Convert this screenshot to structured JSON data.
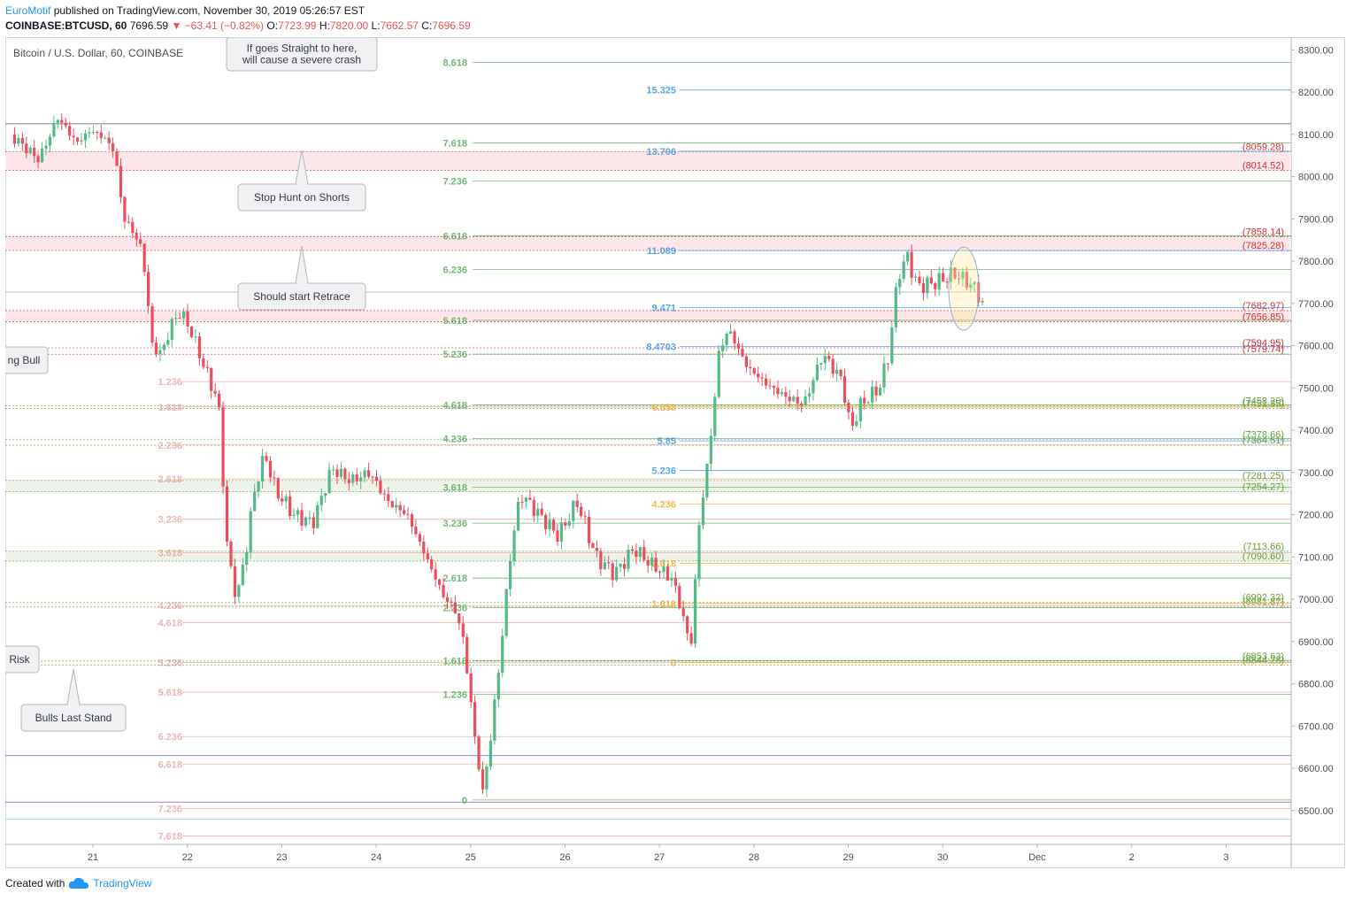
{
  "header": {
    "brand": "EuroMotif",
    "published_text": "published on TradingView.com, November 30, 2019 05:26:57 EST",
    "symbol": "COINBASE:BTCUSD, 60",
    "last": "7696.59",
    "change": "−63.41 (−0.82%)",
    "o_label": "O:",
    "o": "7723.99",
    "h_label": "H:",
    "h": "7820.00",
    "l_label": "L:",
    "l": "7662.57",
    "c_label": "C:",
    "c": "7696.59"
  },
  "footer": {
    "created_with": "Created with",
    "tradingview": "TradingView"
  },
  "colors": {
    "up": "#53b987",
    "down": "#eb4d5c",
    "grid": "#e0e3eb"
  },
  "chart_data": {
    "type": "candlestick",
    "title": "Bitcoin / U.S. Dollar, 60, COINBASE",
    "y_range": [
      6420,
      8330
    ],
    "y_ticks": [
      "8300.00",
      "8200.00",
      "8100.00",
      "8000.00",
      "7900.00",
      "7800.00",
      "7700.00",
      "7600.00",
      "7500.00",
      "7400.00",
      "7300.00",
      "7200.00",
      "7100.00",
      "7000.00",
      "6900.00",
      "6800.00",
      "6700.00",
      "6600.00",
      "6500.00"
    ],
    "x_labels": [
      "21",
      "22",
      "23",
      "24",
      "25",
      "26",
      "27",
      "28",
      "29",
      "30",
      "Dec",
      "2",
      "3"
    ],
    "price_path": [
      [
        0.0,
        8100
      ],
      [
        0.3,
        8040
      ],
      [
        0.5,
        8140
      ],
      [
        0.7,
        8080
      ],
      [
        0.85,
        8110
      ],
      [
        1.0,
        8090
      ],
      [
        1.1,
        8060
      ],
      [
        1.2,
        7900
      ],
      [
        1.3,
        7870
      ],
      [
        1.4,
        7820
      ],
      [
        1.5,
        7600
      ],
      [
        1.6,
        7580
      ],
      [
        1.7,
        7650
      ],
      [
        1.8,
        7680
      ],
      [
        1.9,
        7640
      ],
      [
        2.0,
        7580
      ],
      [
        2.1,
        7520
      ],
      [
        2.2,
        7470
      ],
      [
        2.3,
        7100
      ],
      [
        2.4,
        7000
      ],
      [
        2.5,
        7130
      ],
      [
        2.6,
        7280
      ],
      [
        2.7,
        7340
      ],
      [
        2.8,
        7260
      ],
      [
        2.9,
        7230
      ],
      [
        3.0,
        7200
      ],
      [
        3.2,
        7180
      ],
      [
        3.4,
        7310
      ],
      [
        3.6,
        7280
      ],
      [
        3.8,
        7300
      ],
      [
        4.0,
        7230
      ],
      [
        4.2,
        7200
      ],
      [
        4.4,
        7100
      ],
      [
        4.6,
        7000
      ],
      [
        4.7,
        6980
      ],
      [
        4.8,
        6900
      ],
      [
        4.9,
        6700
      ],
      [
        5.0,
        6540
      ],
      [
        5.1,
        6700
      ],
      [
        5.2,
        6900
      ],
      [
        5.3,
        7120
      ],
      [
        5.4,
        7250
      ],
      [
        5.6,
        7200
      ],
      [
        5.8,
        7150
      ],
      [
        6.0,
        7230
      ],
      [
        6.2,
        7100
      ],
      [
        6.4,
        7060
      ],
      [
        6.6,
        7120
      ],
      [
        6.8,
        7080
      ],
      [
        7.0,
        7050
      ],
      [
        7.1,
        6980
      ],
      [
        7.2,
        6880
      ],
      [
        7.3,
        7200
      ],
      [
        7.4,
        7350
      ],
      [
        7.5,
        7580
      ],
      [
        7.6,
        7640
      ],
      [
        7.8,
        7550
      ],
      [
        8.0,
        7510
      ],
      [
        8.2,
        7480
      ],
      [
        8.4,
        7460
      ],
      [
        8.6,
        7580
      ],
      [
        8.8,
        7520
      ],
      [
        8.9,
        7400
      ],
      [
        9.0,
        7460
      ],
      [
        9.2,
        7500
      ],
      [
        9.3,
        7580
      ],
      [
        9.4,
        7770
      ],
      [
        9.5,
        7810
      ],
      [
        9.6,
        7740
      ],
      [
        9.8,
        7750
      ],
      [
        10.0,
        7770
      ],
      [
        10.2,
        7740
      ],
      [
        10.3,
        7697
      ]
    ],
    "horizontal_levels": [
      {
        "price": 8059.28,
        "label": "(8059.28)",
        "color": "#d32f2f"
      },
      {
        "price": 8014.52,
        "label": "(8014.52)",
        "color": "#d32f2f"
      },
      {
        "price": 7858.14,
        "label": "(7858.14)",
        "color": "#d32f2f"
      },
      {
        "price": 7825.28,
        "label": "(7825.28)",
        "color": "#d32f2f"
      },
      {
        "price": 7682.97,
        "label": "(7682.97)",
        "color": "#d32f2f"
      },
      {
        "price": 7656.85,
        "label": "(7656.85)",
        "color": "#d32f2f"
      },
      {
        "price": 7594.95,
        "label": "(7594.95)",
        "color": "#d32f2f"
      },
      {
        "price": 7579.74,
        "label": "(7579.74)",
        "color": "#d32f2f"
      },
      {
        "price": 7458.2,
        "label": "(7458.20)",
        "color": "#689f38"
      },
      {
        "price": 7451.35,
        "label": "(7451.35)",
        "color": "#689f38"
      },
      {
        "price": 7378.66,
        "label": "(7378.66)",
        "color": "#689f38"
      },
      {
        "price": 7364.51,
        "label": "(7364.51)",
        "color": "#689f38"
      },
      {
        "price": 7281.25,
        "label": "(7281.25)",
        "color": "#689f38"
      },
      {
        "price": 7254.27,
        "label": "(7254.27)",
        "color": "#689f38"
      },
      {
        "price": 7113.66,
        "label": "(7113.66)",
        "color": "#689f38"
      },
      {
        "price": 7090.6,
        "label": "(7090.60)",
        "color": "#689f38"
      },
      {
        "price": 6992.32,
        "label": "(6992.32)",
        "color": "#689f38"
      },
      {
        "price": 6981.87,
        "label": "(6981.87)",
        "color": "#689f38"
      },
      {
        "price": 6853.63,
        "label": "(6853.63)",
        "color": "#689f38"
      },
      {
        "price": 6844.28,
        "label": "(6844.28)",
        "color": "#689f38"
      }
    ],
    "fib_green": [
      {
        "ratio": "8.618",
        "price": 8270
      },
      {
        "ratio": "7.618",
        "price": 8080
      },
      {
        "ratio": "7.236",
        "price": 7990
      },
      {
        "ratio": "6.618",
        "price": 7860
      },
      {
        "ratio": "6.236",
        "price": 7780
      },
      {
        "ratio": "5.618",
        "price": 7660
      },
      {
        "ratio": "5.236",
        "price": 7580
      },
      {
        "ratio": "4.618",
        "price": 7460
      },
      {
        "ratio": "4.236",
        "price": 7380
      },
      {
        "ratio": "3.618",
        "price": 7265
      },
      {
        "ratio": "3.236",
        "price": 7180
      },
      {
        "ratio": "2.618",
        "price": 7050
      },
      {
        "ratio": "2.236",
        "price": 6980
      },
      {
        "ratio": "1.618",
        "price": 6855
      },
      {
        "ratio": "1.236",
        "price": 6775
      },
      {
        "ratio": "0",
        "price": 6525
      }
    ],
    "fib_blue": [
      {
        "ratio": "15.325",
        "price": 8205
      },
      {
        "ratio": "13.706",
        "price": 8060
      },
      {
        "ratio": "11.089",
        "price": 7825
      },
      {
        "ratio": "9.471",
        "price": 7690
      },
      {
        "ratio": "8.4703",
        "price": 7598
      },
      {
        "ratio": "5.85",
        "price": 7375
      },
      {
        "ratio": "5.236",
        "price": 7305
      }
    ],
    "fib_orange": [
      {
        "ratio": "6.853",
        "price": 7455
      },
      {
        "ratio": "4.236",
        "price": 7225
      },
      {
        "ratio": "2.618",
        "price": 7085
      },
      {
        "ratio": "1.618",
        "price": 6990
      },
      {
        "ratio": "0",
        "price": 6850
      }
    ],
    "fib_red": [
      {
        "ratio": "1.236",
        "price": 7515
      },
      {
        "ratio": "1.618",
        "price": 7455
      },
      {
        "ratio": "2.236",
        "price": 7365
      },
      {
        "ratio": "2.618",
        "price": 7285
      },
      {
        "ratio": "3.236",
        "price": 7190
      },
      {
        "ratio": "3.618",
        "price": 7110
      },
      {
        "ratio": "4.236",
        "price": 6985
      },
      {
        "ratio": "4.618",
        "price": 6945
      },
      {
        "ratio": "5.236",
        "price": 6850
      },
      {
        "ratio": "5.618",
        "price": 6780
      },
      {
        "ratio": "6.236",
        "price": 6675
      },
      {
        "ratio": "6.618",
        "price": 6610
      },
      {
        "ratio": "7.236",
        "price": 6505
      },
      {
        "ratio": "7.618",
        "price": 6440
      }
    ],
    "annotations": [
      {
        "text": "If goes Straight to here,",
        "text2": "will cause a severe crash"
      },
      {
        "text": "Stop Hunt on Shorts"
      },
      {
        "text": "Should start Retrace"
      },
      {
        "text": "ng Bull"
      },
      {
        "text": "Risk"
      },
      {
        "text": "Bulls Last Stand"
      }
    ]
  }
}
